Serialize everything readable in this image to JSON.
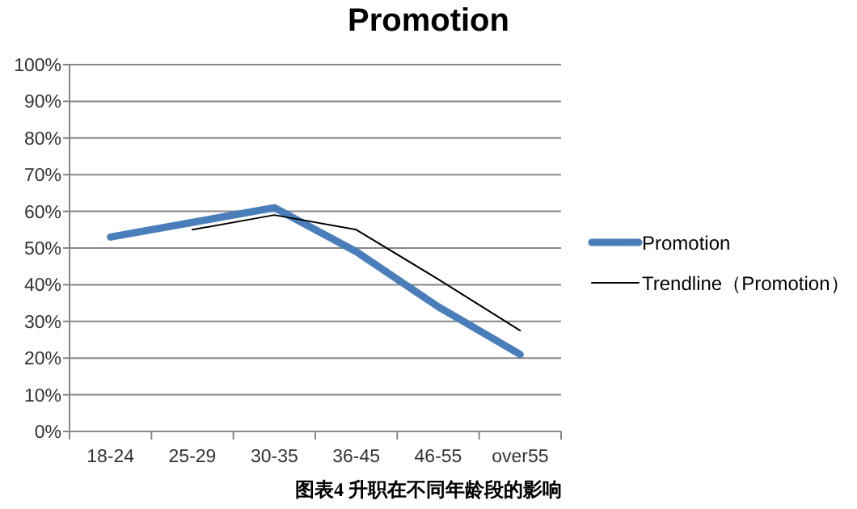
{
  "chart_data": {
    "type": "line",
    "title": "Promotion",
    "categories": [
      "18-24",
      "25-29",
      "30-35",
      "36-45",
      "46-55",
      "over55"
    ],
    "series": [
      {
        "name": "Promotion",
        "color": "#4a7ebb",
        "values": [
          53,
          57,
          61,
          49,
          34,
          21
        ]
      },
      {
        "name": "Trendline（Promotion）",
        "color": "#000000",
        "values": [
          null,
          55,
          59,
          55,
          41.5,
          27.5
        ]
      }
    ],
    "ylim": [
      0,
      100
    ],
    "yticks": [
      {
        "value": 0,
        "label": "0%"
      },
      {
        "value": 10,
        "label": "10%"
      },
      {
        "value": 20,
        "label": "20%"
      },
      {
        "value": 30,
        "label": "30%"
      },
      {
        "value": 40,
        "label": "40%"
      },
      {
        "value": 50,
        "label": "50%"
      },
      {
        "value": 60,
        "label": "60%"
      },
      {
        "value": 70,
        "label": "70%"
      },
      {
        "value": 80,
        "label": "80%"
      },
      {
        "value": 90,
        "label": "90%"
      },
      {
        "value": 100,
        "label": "100%"
      }
    ],
    "grid": "y",
    "legend": "right",
    "annotations": [
      "图表4 升职在不同年龄段的影响"
    ]
  }
}
